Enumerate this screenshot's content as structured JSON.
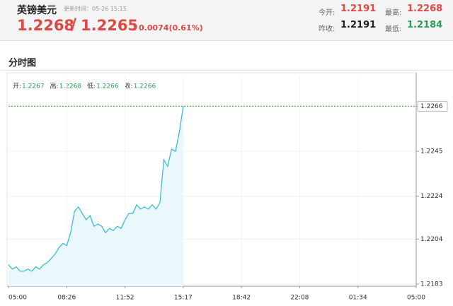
{
  "header": {
    "title": "英镑美元",
    "update_time": "更新时间：05-26 15:15",
    "price": "1.2268",
    "price2": "1.2265",
    "change": "0.0074(0.61%)",
    "stats": [
      {
        "label": "今开:",
        "value": "1.2191"
      },
      {
        "label": "最高:",
        "value": "1.2268"
      },
      {
        "label": "昨收:",
        "value": "1.2191"
      },
      {
        "label": "最低:",
        "value": "1.2184"
      }
    ]
  },
  "section_title": "分时图",
  "chart_data": {
    "type": "line",
    "ohlc": [
      {
        "label": "开:",
        "value": "1.2267"
      },
      {
        "label": "高:",
        "value": "1.2268"
      },
      {
        "label": "低:",
        "value": "1.2266"
      },
      {
        "label": "收:",
        "value": "1.2266"
      }
    ],
    "categories": [
      "05:00",
      null,
      null,
      null,
      null,
      null,
      null,
      null,
      null,
      null,
      null,
      null,
      null,
      null,
      null,
      "08:26",
      null,
      null,
      null,
      null,
      null,
      null,
      null,
      null,
      null,
      null,
      null,
      null,
      null,
      null,
      "11:52",
      null,
      null,
      null,
      null,
      null,
      null,
      null,
      null,
      null,
      null,
      null,
      null,
      null,
      null,
      "15:17",
      null,
      null,
      null,
      null,
      null,
      null,
      null,
      null,
      null,
      null,
      null,
      null,
      null,
      null,
      "18:42",
      null,
      null,
      null,
      null,
      null,
      null,
      null,
      null,
      null,
      null,
      null,
      null,
      null,
      null,
      "22:08",
      null,
      null,
      null,
      null,
      null,
      null,
      null,
      null,
      null,
      null,
      null,
      null,
      null,
      null,
      "01:34",
      null,
      null,
      null,
      null,
      null,
      null,
      null,
      null,
      null,
      null,
      null,
      null,
      null,
      null,
      "05:00"
    ],
    "series": [
      {
        "name": "英镑美元",
        "color": "#3dbdd6",
        "values": [
          1.2192,
          1.219,
          1.2191,
          1.2189,
          1.2189,
          1.219,
          1.2189,
          1.2191,
          1.219,
          1.2192,
          1.2193,
          1.2195,
          1.2197,
          1.22,
          1.2202,
          1.2201,
          1.2207,
          1.2217,
          1.2219,
          1.2216,
          1.2213,
          1.2215,
          1.221,
          1.2211,
          1.221,
          1.2207,
          1.2209,
          1.2208,
          1.221,
          1.2209,
          1.2213,
          1.2216,
          1.2216,
          1.222,
          1.2218,
          1.2219,
          1.2218,
          1.222,
          1.2218,
          1.2221,
          1.2241,
          1.2238,
          1.2246,
          1.2245,
          1.2254,
          1.2266,
          null,
          null,
          null,
          null,
          null,
          null,
          null,
          null,
          null,
          null,
          null,
          null,
          null,
          null,
          null,
          null,
          null,
          null,
          null,
          null,
          null,
          null,
          null,
          null,
          null,
          null,
          null,
          null,
          null,
          null,
          null,
          null,
          null,
          null,
          null,
          null,
          null,
          null,
          null,
          null,
          null,
          null,
          null,
          null,
          null,
          null,
          null,
          null,
          null,
          null,
          null,
          null,
          null,
          null,
          null,
          null,
          null,
          null,
          null,
          null
        ]
      }
    ],
    "ylim": [
      1.2182,
      1.228
    ],
    "yticks": [
      1.2183,
      1.2204,
      1.2224,
      1.2245,
      1.2266
    ],
    "grid": true
  }
}
